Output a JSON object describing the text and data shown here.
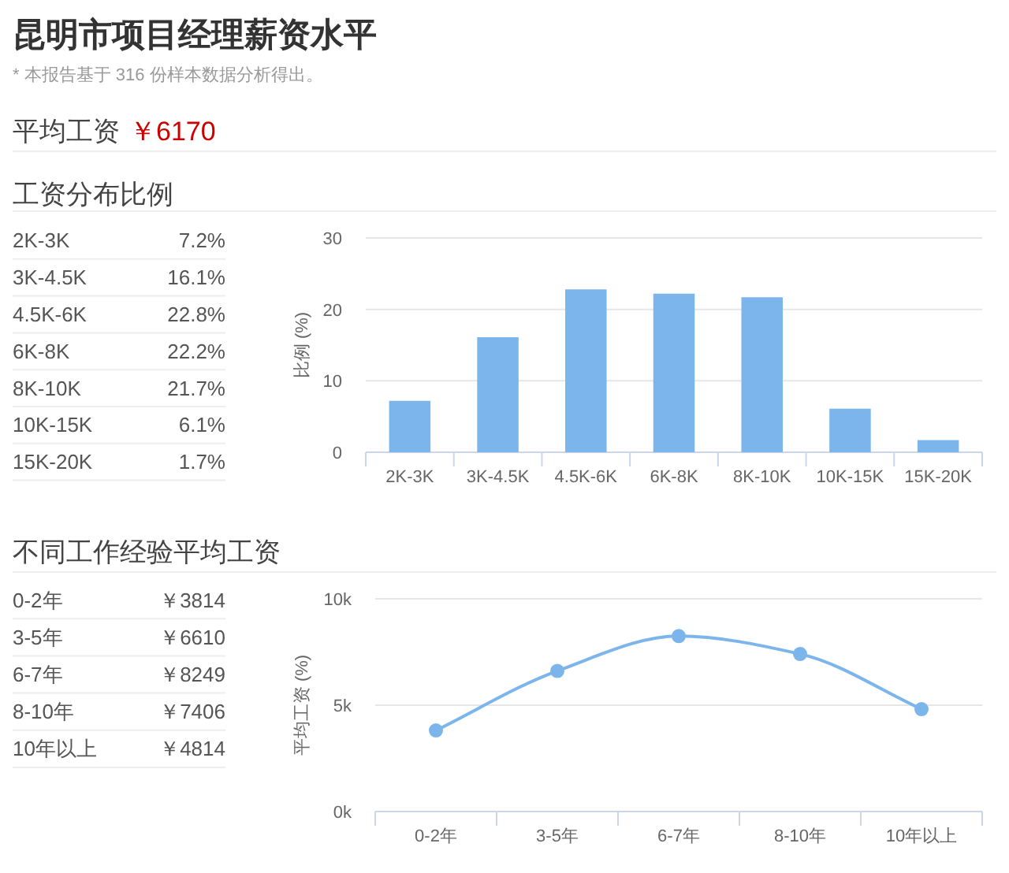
{
  "chart_data": [
    {
      "type": "other",
      "title": "昆明市项目经理薪资水平",
      "subtitle": "* 本报告基于 316 份样本数据分析得出。",
      "annotations": [
        "平均工资",
        "￥6170"
      ]
    },
    {
      "type": "other",
      "title": "工资分布比例",
      "annotations": [
        "2K-3K",
        "7.2%",
        "3K-4.5K",
        "16.1%",
        "4.5K-6K",
        "22.8%",
        "6K-8K",
        "22.2%",
        "8K-10K",
        "21.7%",
        "10K-15K",
        "6.1%",
        "15K-20K",
        "1.7%"
      ]
    },
    {
      "type": "bar",
      "categories": [
        "2K-3K",
        "3K-4.5K",
        "4.5K-6K",
        "6K-8K",
        "8K-10K",
        "10K-15K",
        "15K-20K"
      ],
      "values": [
        7.2,
        16.1,
        22.8,
        22.2,
        21.7,
        6.1,
        1.7
      ],
      "color": "#7cb5ec",
      "ylabel": "比例 (%)",
      "ylim": [
        0,
        30
      ],
      "yticks": [
        0,
        10,
        20,
        30
      ],
      "grid": "y"
    },
    {
      "type": "other",
      "title": "不同工作经验平均工资",
      "annotations": [
        "0-2年",
        "￥3814",
        "3-5年",
        "￥6610",
        "6-7年",
        "￥8249",
        "8-10年",
        "￥7406",
        "10年以上",
        "￥4814"
      ]
    },
    {
      "type": "line",
      "categories": [
        "0-2年",
        "3-5年",
        "6-7年",
        "8-10年",
        "10年以上"
      ],
      "values": [
        3814,
        6610,
        8249,
        7406,
        4814
      ],
      "color": "#7cb5ec",
      "ylabel": "平均工资 (%)",
      "ylim": [
        0,
        10000
      ],
      "yticks": [
        {
          "value": 0,
          "label": "0k"
        },
        {
          "value": 5000,
          "label": "5k"
        },
        {
          "value": 10000,
          "label": "10k"
        }
      ],
      "grid": "y",
      "marker": "circle"
    }
  ]
}
